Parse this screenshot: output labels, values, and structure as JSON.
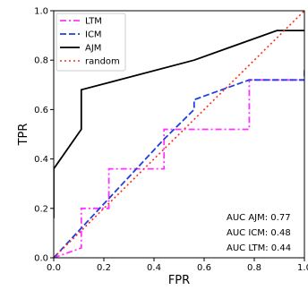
{
  "chart_data": {
    "type": "line",
    "title": "",
    "xlabel": "FPR",
    "ylabel": "TPR",
    "xlim": [
      0.0,
      1.0
    ],
    "ylim": [
      0.0,
      1.0
    ],
    "xticks": [
      0.0,
      0.2,
      0.4,
      0.6,
      0.8,
      1.0
    ],
    "yticks": [
      0.0,
      0.2,
      0.4,
      0.6,
      0.8,
      1.0
    ],
    "xtick_labels": [
      "0.0",
      "0.2",
      "0.4",
      "0.6",
      "0.8",
      "1.0"
    ],
    "ytick_labels": [
      "0.0",
      "0.2",
      "0.4",
      "0.6",
      "0.8",
      "1.0"
    ],
    "grid": false,
    "legend_position": "top-left",
    "series": [
      {
        "name": "LTM",
        "color": "#ff33ff",
        "style": "dashdot",
        "x": [
          0.0,
          0.11,
          0.11,
          0.11,
          0.22,
          0.22,
          0.44,
          0.44,
          0.78,
          0.78,
          1.0
        ],
        "y": [
          0.0,
          0.04,
          0.12,
          0.2,
          0.2,
          0.36,
          0.36,
          0.52,
          0.52,
          0.72,
          0.72
        ]
      },
      {
        "name": "ICM",
        "color": "#1f3fe0",
        "style": "dashed",
        "x": [
          0.0,
          0.11,
          0.44,
          0.56,
          0.56,
          0.67,
          0.78,
          1.0,
          1.0
        ],
        "y": [
          0.0,
          0.12,
          0.48,
          0.6,
          0.64,
          0.68,
          0.72,
          0.72,
          0.76
        ]
      },
      {
        "name": "AJM",
        "color": "#000000",
        "style": "solid",
        "x": [
          0.0,
          0.0,
          0.11,
          0.11,
          0.56,
          0.89,
          1.0
        ],
        "y": [
          0.16,
          0.36,
          0.52,
          0.68,
          0.8,
          0.92,
          0.92
        ]
      },
      {
        "name": "random",
        "color": "#ff2a1a",
        "style": "dotted",
        "x": [
          0.0,
          1.0
        ],
        "y": [
          0.0,
          1.0
        ]
      }
    ],
    "annotations": [
      "AUC AJM: 0.77",
      "AUC ICM: 0.48",
      "AUC LTM: 0.44"
    ]
  }
}
